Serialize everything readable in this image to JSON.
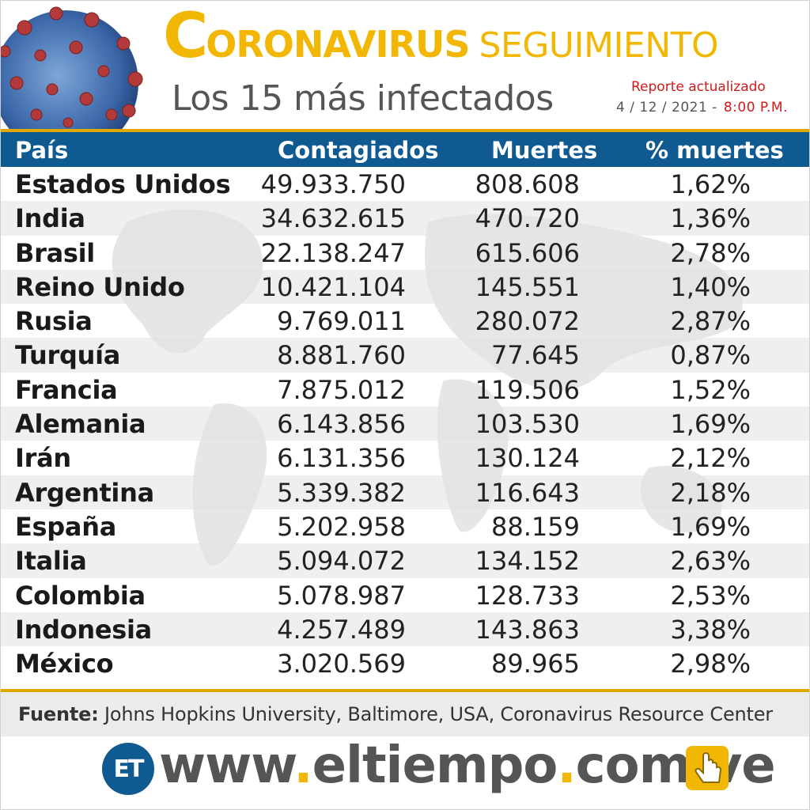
{
  "header": {
    "title_first_letter": "C",
    "title_rest": "ORONAVIRUS",
    "title_second": "SEGUIMIENTO",
    "subtitle": "Los 15 más infectados",
    "report_label": "Reporte actualizado",
    "report_date": "4 / 12 / 2021 -",
    "report_time": "8:00 P.M.",
    "accent_color": "#f2b705",
    "header_blue": "#0f5a90"
  },
  "table": {
    "columns": [
      "País",
      "Contagiados",
      "Muertes",
      "% muertes"
    ],
    "rows": [
      {
        "country": "Estados Unidos",
        "cases": "49.933.750",
        "deaths": "808.608",
        "pct": "1,62%"
      },
      {
        "country": "India",
        "cases": "34.632.615",
        "deaths": "470.720",
        "pct": "1,36%"
      },
      {
        "country": "Brasil",
        "cases": "22.138.247",
        "deaths": "615.606",
        "pct": "2,78%"
      },
      {
        "country": "Reino Unido",
        "cases": "10.421.104",
        "deaths": "145.551",
        "pct": "1,40%"
      },
      {
        "country": "Rusia",
        "cases": "9.769.011",
        "deaths": "280.072",
        "pct": "2,87%"
      },
      {
        "country": "Turquía",
        "cases": "8.881.760",
        "deaths": "77.645",
        "pct": "0,87%"
      },
      {
        "country": "Francia",
        "cases": "7.875.012",
        "deaths": "119.506",
        "pct": "1,52%"
      },
      {
        "country": "Alemania",
        "cases": "6.143.856",
        "deaths": "103.530",
        "pct": "1,69%"
      },
      {
        "country": "Irán",
        "cases": "6.131.356",
        "deaths": "130.124",
        "pct": "2,12%"
      },
      {
        "country": "Argentina",
        "cases": "5.339.382",
        "deaths": "116.643",
        "pct": "2,18%"
      },
      {
        "country": "España",
        "cases": "5.202.958",
        "deaths": "88.159",
        "pct": "1,69%"
      },
      {
        "country": "Italia",
        "cases": "5.094.072",
        "deaths": "134.152",
        "pct": "2,63%"
      },
      {
        "country": "Colombia",
        "cases": "5.078.987",
        "deaths": "128.733",
        "pct": "2,53%"
      },
      {
        "country": "Indonesia",
        "cases": "4.257.489",
        "deaths": "143.863",
        "pct": "3,38%"
      },
      {
        "country": "México",
        "cases": "3.020.569",
        "deaths": "89.965",
        "pct": "2,98%"
      }
    ]
  },
  "source": {
    "label": "Fuente:",
    "text": "Johns Hopkins University, Baltimore, USA, Coronavirus Resource Center"
  },
  "footer": {
    "logo": "ET",
    "url_parts": [
      "www",
      ".",
      "eltiempo",
      ".",
      "com",
      ".",
      "ve"
    ],
    "icon": "hand-pointer-icon"
  }
}
